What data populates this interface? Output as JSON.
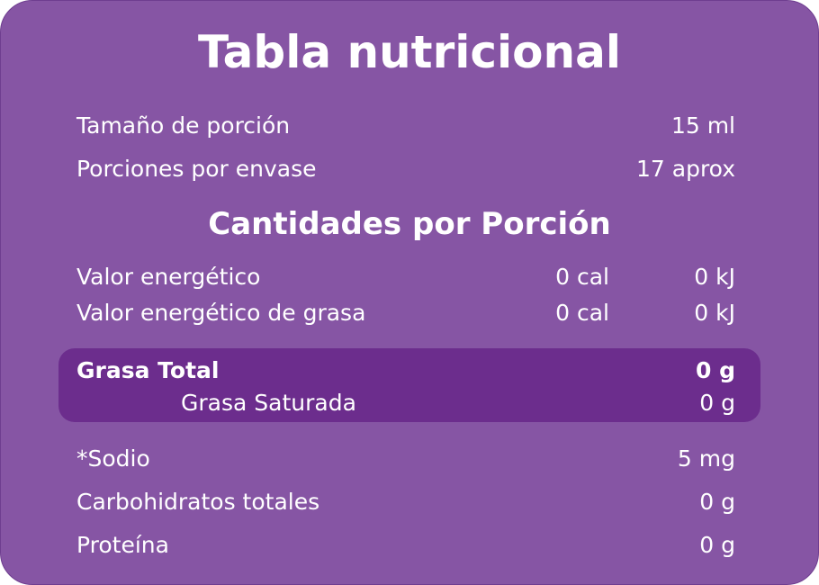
{
  "title": "Tabla nutricional",
  "serving": [
    {
      "label": "Tamaño de porción",
      "value": "15 ml"
    },
    {
      "label": "Porciones por envase",
      "value": "17 aprox"
    }
  ],
  "section_title": "Cantidades por Porción",
  "energy": [
    {
      "label": "Valor energético",
      "cal": "0 cal",
      "kj": "0 kJ"
    },
    {
      "label": "Valor energético de grasa",
      "cal": "0 cal",
      "kj": "0 kJ"
    }
  ],
  "fat": {
    "label": "Grasa Total",
    "value": "0 g",
    "sub_label": "Grasa Saturada",
    "sub_value": "0 g"
  },
  "others": [
    {
      "label": "*Sodio",
      "value": "5 mg"
    },
    {
      "label": "Carbohidratos totales",
      "value": "0 g"
    },
    {
      "label": "Proteína",
      "value": "0 g"
    }
  ]
}
